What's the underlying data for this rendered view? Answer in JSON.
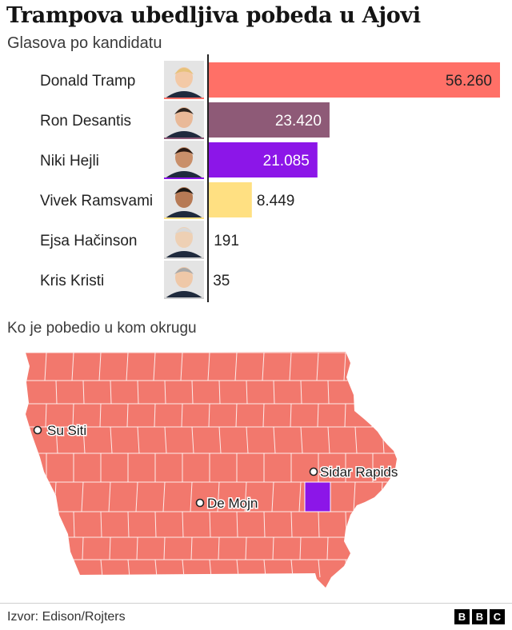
{
  "title": "Trampova ubedljiva pobeda u Ajovi",
  "subtitle": "Glasova po kandidatu",
  "chart_data": {
    "type": "bar",
    "orientation": "horizontal",
    "categories": [
      "Donald Tramp",
      "Ron Desantis",
      "Niki Hejli",
      "Vivek Ramsvami",
      "Ejsa Hačinson",
      "Kris Kristi"
    ],
    "values": [
      56260,
      23420,
      21085,
      8449,
      191,
      35
    ],
    "value_labels": [
      "56.260",
      "23.420",
      "21.085",
      "8.449",
      "191",
      "35"
    ],
    "colors": [
      "#ff7067",
      "#8e5a77",
      "#8c16e8",
      "#ffe082",
      "#cfcfcf",
      "#cfcfcf"
    ],
    "xlim": [
      0,
      56260
    ]
  },
  "map": {
    "label": "Ko je pobedio u kom okrugu",
    "colors": {
      "tramp": "#f2786d",
      "hejli": "#8c16e8"
    },
    "cities": [
      {
        "name": "Su Siti"
      },
      {
        "name": "De Mojn"
      },
      {
        "name": "Sidar Rapids"
      }
    ]
  },
  "source": "Izvor: Edison/Rojters",
  "logo": [
    "B",
    "B",
    "C"
  ]
}
